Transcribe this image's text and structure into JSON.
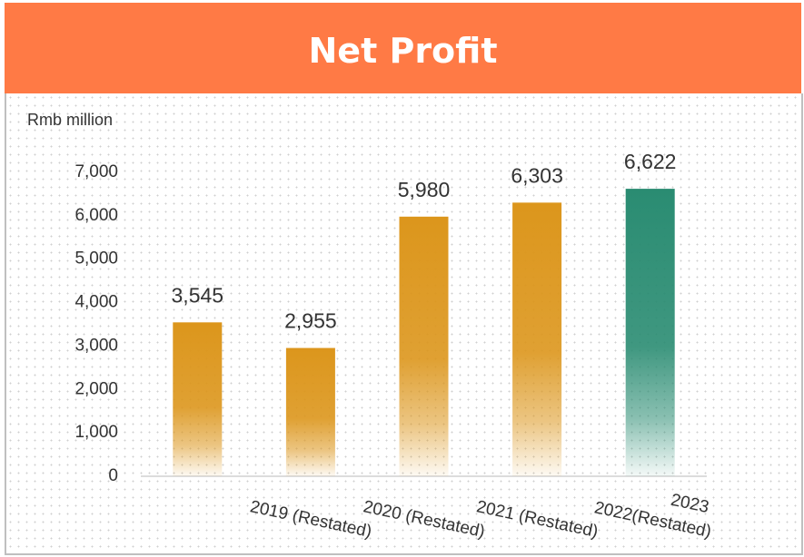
{
  "chart_data": {
    "type": "bar",
    "title": "Net Profit",
    "y_label": "Rmb million",
    "categories": [
      "2019 (Restated)",
      "2020 (Restated)",
      "2021 (Restated)",
      "2022(Restated)",
      "2023"
    ],
    "values": [
      3545,
      2955,
      5980,
      6303,
      6622
    ],
    "value_labels": [
      "3,545",
      "2,955",
      "5,980",
      "6,303",
      "6,622"
    ],
    "colors": [
      "#dc961c",
      "#dc961c",
      "#dc961c",
      "#dc961c",
      "#2a8c72"
    ],
    "ylim": [
      0,
      7000
    ],
    "yticks": [
      0,
      {
        "value": 1000,
        "label": "1,000"
      },
      {
        "value": 2000,
        "label": "2,000"
      },
      {
        "value": 3000,
        "label": "3,000"
      },
      {
        "value": 4000,
        "label": "4,000"
      },
      {
        "value": 5000,
        "label": "5,000"
      },
      {
        "value": 6000,
        "label": "6,000"
      },
      {
        "value": 7000,
        "label": "7,000"
      }
    ],
    "grid": false
  }
}
